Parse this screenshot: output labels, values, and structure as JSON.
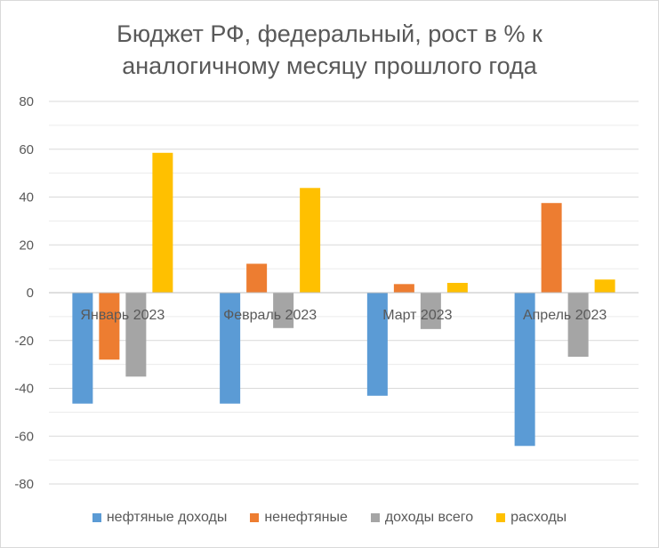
{
  "chart_data": {
    "type": "bar",
    "title": "Бюджет РФ, федеральный, рост в % к аналогичному месяцу прошлого года",
    "title_lines": [
      "Бюджет РФ, федеральный, рост в % к",
      "аналогичному месяцу прошлого года"
    ],
    "categories": [
      "Январь 2023",
      "Февраль 2023",
      "Март 2023",
      "Апрель 2023"
    ],
    "series": [
      {
        "name": "нефтяные доходы",
        "color": "#5b9bd5",
        "values": [
          -46.4,
          -46.4,
          -43.1,
          -64.1
        ]
      },
      {
        "name": "ненефтяные",
        "color": "#ed7d31",
        "values": [
          -28.0,
          12.1,
          3.6,
          37.5
        ]
      },
      {
        "name": "доходы всего",
        "color": "#a5a5a5",
        "values": [
          -35.1,
          -14.8,
          -15.2,
          -26.8
        ]
      },
      {
        "name": "расходы",
        "color": "#ffc000",
        "values": [
          58.5,
          43.8,
          4.1,
          5.5
        ]
      }
    ],
    "ylim": [
      -80,
      80
    ],
    "yticks": [
      80,
      60,
      40,
      20,
      0,
      -20,
      -40,
      -60,
      -80
    ],
    "grid": true,
    "legend_position": "bottom"
  }
}
